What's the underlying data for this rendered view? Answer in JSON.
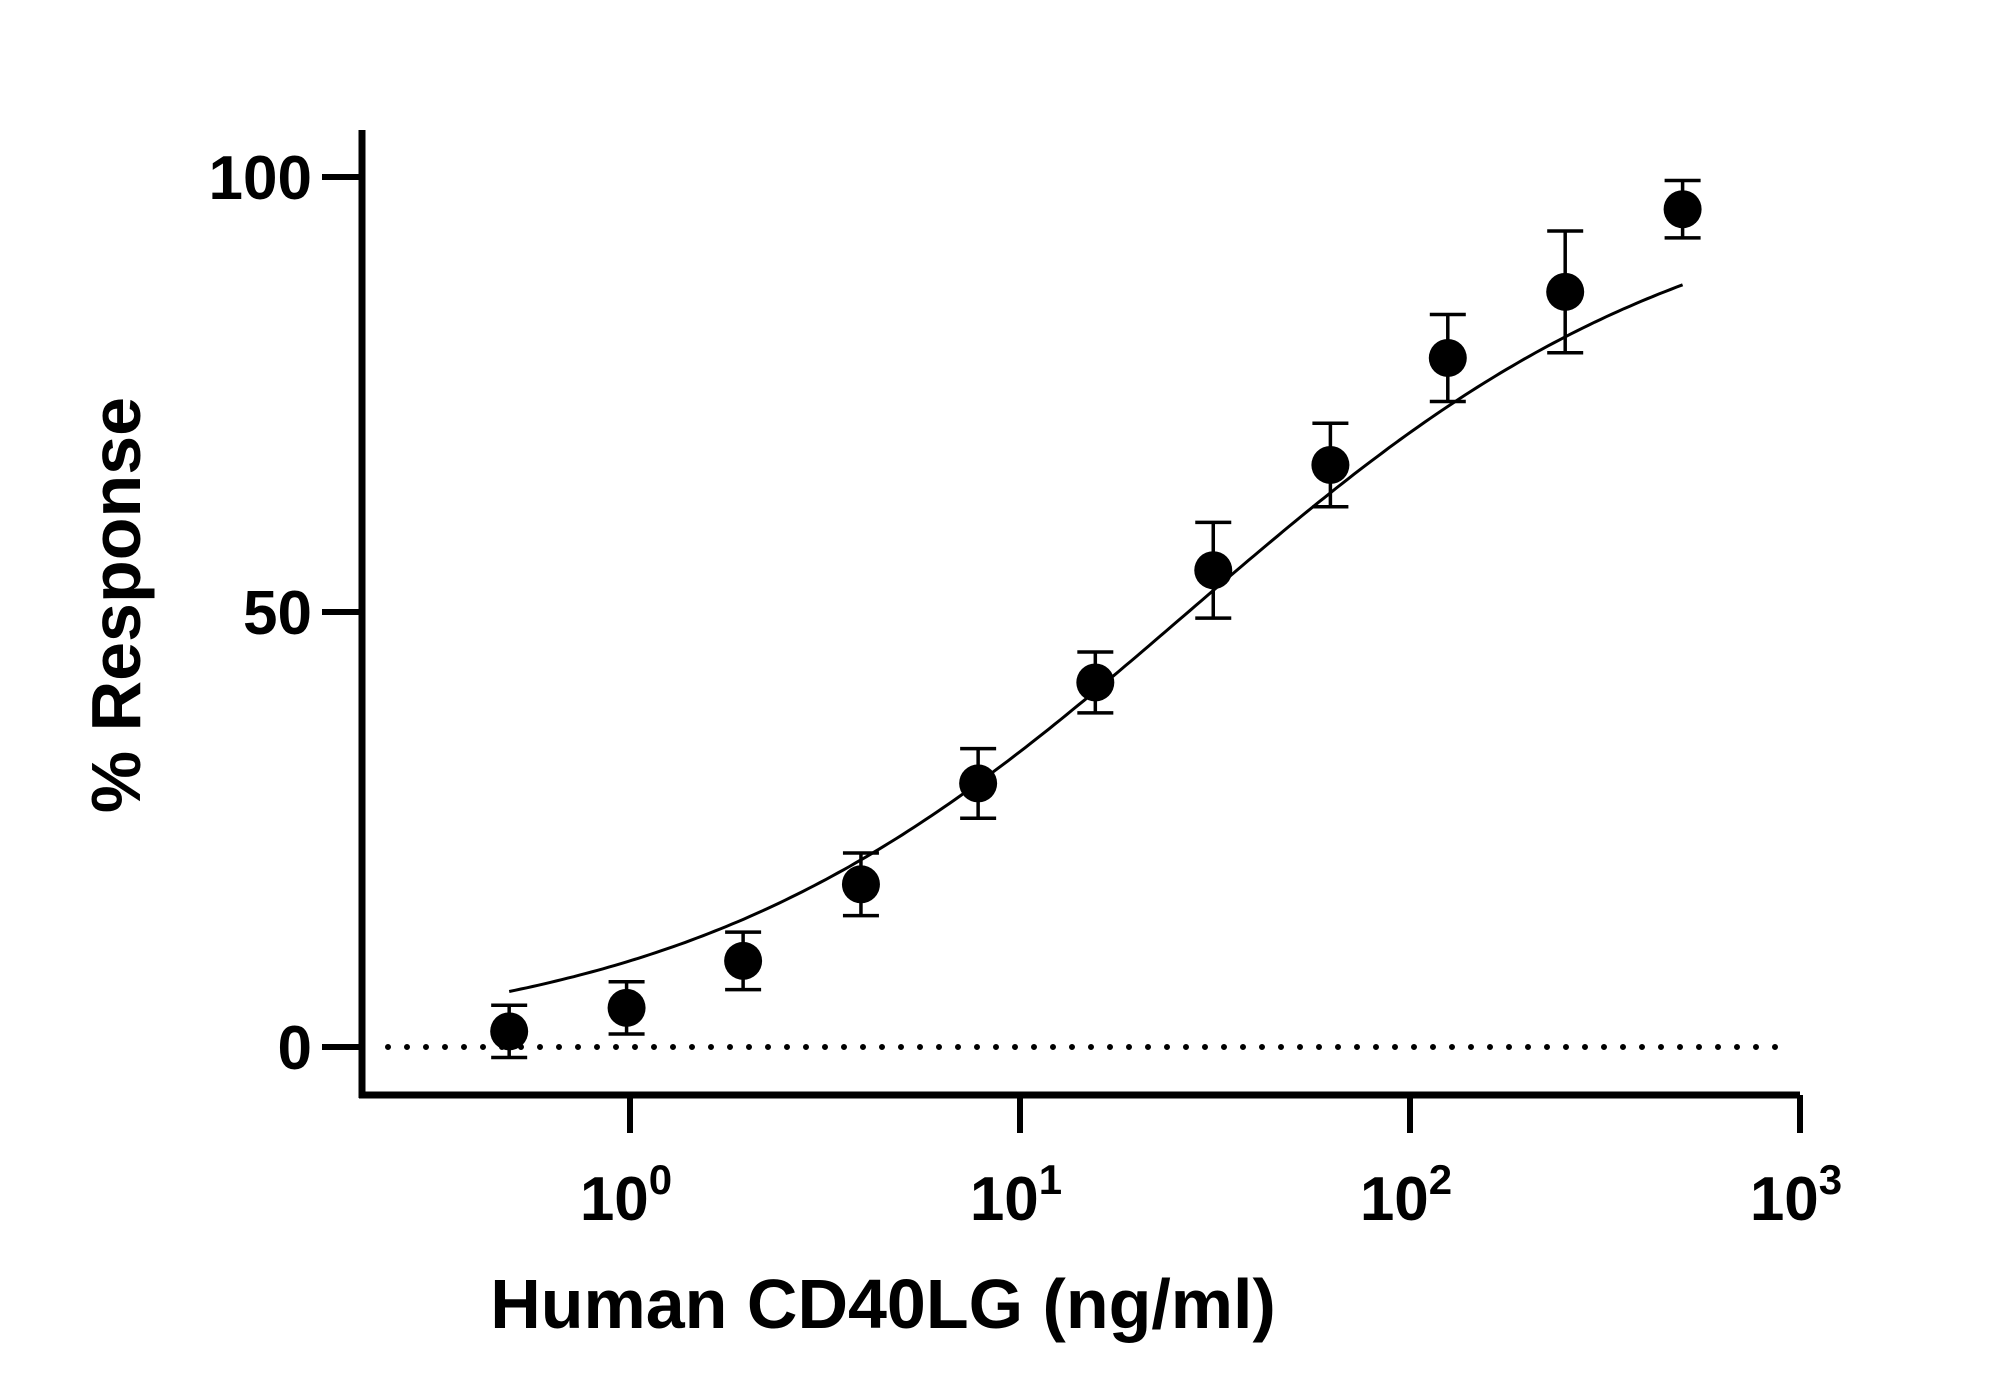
{
  "chart_data": {
    "type": "scatter",
    "title": "",
    "xlabel": "Human CD40LG (ng/ml)",
    "ylabel": "% Response",
    "xscale": "log",
    "xlim": [
      0.2,
      1000
    ],
    "ylim": [
      -5,
      105
    ],
    "x_ticks": [
      {
        "base": "10",
        "exp": "0"
      },
      {
        "base": "10",
        "exp": "1"
      },
      {
        "base": "10",
        "exp": "2"
      },
      {
        "base": "10",
        "exp": "3"
      }
    ],
    "y_ticks": [
      "0",
      "50",
      "100"
    ],
    "baseline": {
      "y": 0,
      "style": "dotted"
    },
    "grid": false,
    "legend": "none",
    "series": [
      {
        "x": [
          0.49,
          0.98,
          1.95,
          3.91,
          7.81,
          15.6,
          31.3,
          62.5,
          125,
          250,
          500
        ],
        "y": [
          1.8,
          4.5,
          9.9,
          18.7,
          30.3,
          41.9,
          54.8,
          66.9,
          79.2,
          86.8,
          96.3
        ],
        "error": [
          3.0,
          3.0,
          3.3,
          3.6,
          4.0,
          3.5,
          5.5,
          4.8,
          5.0,
          7.0,
          3.3
        ],
        "fit": {
          "type": "four-parameter logistic",
          "bottom": 0,
          "top": 100,
          "ec50": 27,
          "hill": 0.67
        }
      }
    ],
    "colors": {
      "marker": "#000000",
      "line": "#000000"
    }
  }
}
